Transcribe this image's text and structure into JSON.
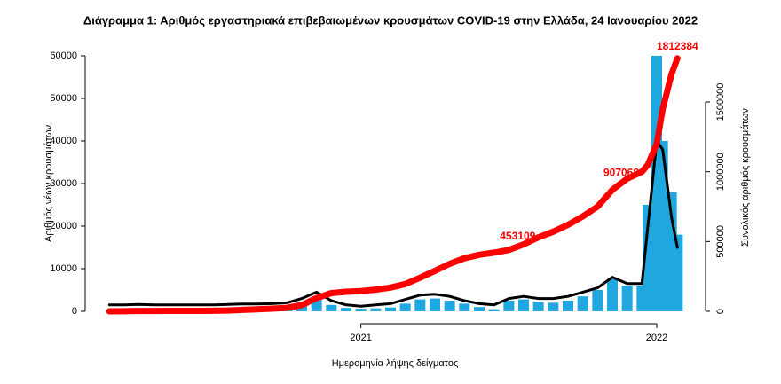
{
  "chart_data": {
    "type": "combo",
    "title": "Διάγραμμα 1: Αριθμός εργαστηριακά επιβεβαιωμένων κρουσμάτων COVID-19 στην Ελλάδα, 24 Ιανουαρίου 2022",
    "xlabel": "Ημερομηνία λήψης δείγματος",
    "ylabel": "Αριθμός νέων κρουσμάτων",
    "y2label": "Συνολικός αριθμός κρουσμάτων",
    "x": [
      2020.15,
      2020.2,
      2020.25,
      2020.3,
      2020.35,
      2020.4,
      2020.45,
      2020.5,
      2020.55,
      2020.6,
      2020.65,
      2020.7,
      2020.75,
      2020.8,
      2020.85,
      2020.9,
      2020.95,
      2021.0,
      2021.05,
      2021.1,
      2021.15,
      2021.2,
      2021.25,
      2021.3,
      2021.35,
      2021.4,
      2021.45,
      2021.5,
      2021.55,
      2021.6,
      2021.65,
      2021.7,
      2021.75,
      2021.8,
      2021.85,
      2021.9,
      2021.95,
      2021.97,
      2022.0,
      2022.02,
      2022.05,
      2022.07
    ],
    "xlim": [
      2020.08,
      2022.15
    ],
    "xticks": [
      2021,
      2022
    ],
    "ylim": [
      -2000,
      62000
    ],
    "yticks": [
      0,
      10000,
      20000,
      30000,
      40000,
      50000,
      60000
    ],
    "y2lim": [
      -61000,
      1891500
    ],
    "y2ticks": [
      0,
      500000,
      1000000,
      1500000
    ],
    "series": [
      {
        "type": "bar",
        "color": "#1fa8e0",
        "values": [
          0,
          50,
          100,
          30,
          20,
          10,
          20,
          30,
          150,
          200,
          300,
          350,
          600,
          2000,
          3000,
          1500,
          800,
          600,
          700,
          900,
          1800,
          2800,
          3000,
          2500,
          1800,
          1000,
          500,
          2500,
          2800,
          2200,
          2000,
          2500,
          3500,
          5000,
          7500,
          6000,
          6000,
          25000,
          60000,
          40000,
          28000,
          18000
        ]
      },
      {
        "type": "line",
        "color": "#000000",
        "values": [
          1500,
          1500,
          1600,
          1500,
          1500,
          1500,
          1500,
          1500,
          1600,
          1700,
          1700,
          1800,
          2000,
          3000,
          4500,
          2500,
          1500,
          1200,
          1500,
          1800,
          2800,
          3800,
          4000,
          3500,
          2500,
          1800,
          1500,
          3000,
          3500,
          3000,
          3000,
          3500,
          4500,
          5500,
          8000,
          6500,
          6500,
          20000,
          40000,
          38000,
          22000,
          15000
        ]
      },
      {
        "type": "line",
        "color": "#ff0000",
        "axis": "y2",
        "values": [
          0,
          500,
          2500,
          2700,
          2900,
          3100,
          3400,
          4000,
          6000,
          10000,
          14000,
          19000,
          25000,
          45000,
          95000,
          130000,
          140000,
          145000,
          155000,
          170000,
          195000,
          240000,
          290000,
          340000,
          380000,
          405000,
          420000,
          440000,
          480000,
          530000,
          570000,
          620000,
          680000,
          750000,
          870000,
          950000,
          1000000,
          1050000,
          1200000,
          1450000,
          1700000,
          1812384
        ]
      }
    ],
    "annotations": [
      {
        "x": 2021.53,
        "value": 453109
      },
      {
        "x": 2021.88,
        "value": 907068
      },
      {
        "x": 2022.07,
        "value": 1812384
      }
    ]
  }
}
